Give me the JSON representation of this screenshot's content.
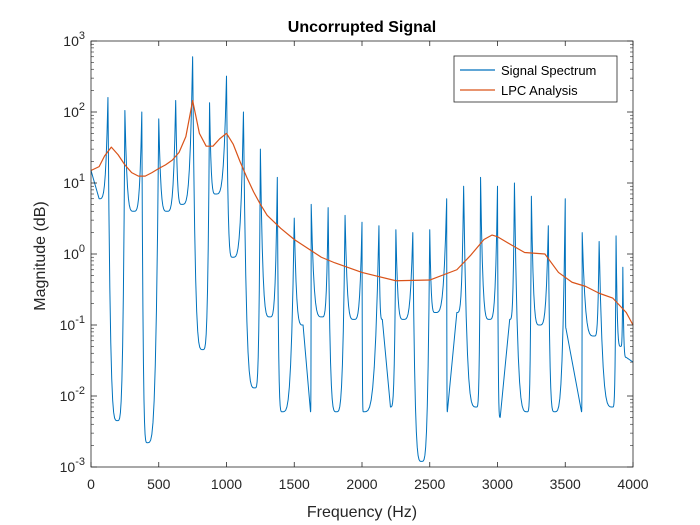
{
  "chart_data": {
    "type": "line",
    "title": "Uncorrupted Signal",
    "xlabel": "Frequency (Hz)",
    "ylabel": "Magnitude (dB)",
    "xlim": [
      0,
      4000
    ],
    "ylim": [
      0.001,
      1000
    ],
    "yscale": "log",
    "x_ticks": [
      0,
      500,
      1000,
      1500,
      2000,
      2500,
      3000,
      3500,
      4000
    ],
    "x_tick_labels": [
      "0",
      "500",
      "1000",
      "1500",
      "2000",
      "2500",
      "3000",
      "3500",
      "4000"
    ],
    "y_ticks": [
      0.001,
      0.01,
      0.1,
      1,
      10,
      100,
      1000
    ],
    "y_tick_labels": [
      {
        "base": "10",
        "exp": "-3"
      },
      {
        "base": "10",
        "exp": "-2"
      },
      {
        "base": "10",
        "exp": "-1"
      },
      {
        "base": "10",
        "exp": "0"
      },
      {
        "base": "10",
        "exp": "1"
      },
      {
        "base": "10",
        "exp": "2"
      },
      {
        "base": "10",
        "exp": "3"
      }
    ],
    "grid": false,
    "legend_position": "top-right",
    "series": [
      {
        "name": "Signal Spectrum",
        "color": "#0072BD",
        "peaks": [
          {
            "x": 125,
            "y": 160
          },
          {
            "x": 250,
            "y": 105
          },
          {
            "x": 375,
            "y": 100
          },
          {
            "x": 500,
            "y": 80
          },
          {
            "x": 625,
            "y": 145
          },
          {
            "x": 750,
            "y": 600
          },
          {
            "x": 875,
            "y": 135
          },
          {
            "x": 1000,
            "y": 320
          },
          {
            "x": 1125,
            "y": 100
          },
          {
            "x": 1250,
            "y": 30
          },
          {
            "x": 1375,
            "y": 12
          },
          {
            "x": 1500,
            "y": 3.2
          },
          {
            "x": 1625,
            "y": 5
          },
          {
            "x": 1750,
            "y": 4.5
          },
          {
            "x": 1875,
            "y": 3.5
          },
          {
            "x": 2000,
            "y": 2.8
          },
          {
            "x": 2125,
            "y": 2.5
          },
          {
            "x": 2250,
            "y": 2.2
          },
          {
            "x": 2375,
            "y": 2
          },
          {
            "x": 2500,
            "y": 2.2
          },
          {
            "x": 2625,
            "y": 6
          },
          {
            "x": 2750,
            "y": 9
          },
          {
            "x": 2875,
            "y": 12
          },
          {
            "x": 3000,
            "y": 9
          },
          {
            "x": 3125,
            "y": 10
          },
          {
            "x": 3250,
            "y": 6.5
          },
          {
            "x": 3375,
            "y": 2.5
          },
          {
            "x": 3500,
            "y": 6
          },
          {
            "x": 3625,
            "y": 2
          },
          {
            "x": 3750,
            "y": 1.5
          },
          {
            "x": 3875,
            "y": 1.8
          },
          {
            "x": 3925,
            "y": 0.65
          }
        ],
        "troughs": [
          {
            "x": 0,
            "y": 15
          },
          {
            "x": 60,
            "y": 6
          },
          {
            "x": 195,
            "y": 0.0045
          },
          {
            "x": 315,
            "y": 4
          },
          {
            "x": 415,
            "y": 0.0022
          },
          {
            "x": 560,
            "y": 4
          },
          {
            "x": 670,
            "y": 5
          },
          {
            "x": 825,
            "y": 0.045
          },
          {
            "x": 920,
            "y": 7
          },
          {
            "x": 1045,
            "y": 0.9
          },
          {
            "x": 1210,
            "y": 0.013
          },
          {
            "x": 1320,
            "y": 0.13
          },
          {
            "x": 1410,
            "y": 0.006
          },
          {
            "x": 1565,
            "y": 0.1
          },
          {
            "x": 1620,
            "y": 0.006
          },
          {
            "x": 1705,
            "y": 0.13
          },
          {
            "x": 1810,
            "y": 0.006
          },
          {
            "x": 1940,
            "y": 0.12
          },
          {
            "x": 2010,
            "y": 0.006
          },
          {
            "x": 2150,
            "y": 0.12
          },
          {
            "x": 2210,
            "y": 0.007
          },
          {
            "x": 2305,
            "y": 0.12
          },
          {
            "x": 2440,
            "y": 0.0012
          },
          {
            "x": 2540,
            "y": 0.15
          },
          {
            "x": 2630,
            "y": 0.006
          },
          {
            "x": 2700,
            "y": 0.15
          },
          {
            "x": 2845,
            "y": 0.007
          },
          {
            "x": 2940,
            "y": 0.12
          },
          {
            "x": 3020,
            "y": 0.005
          },
          {
            "x": 3090,
            "y": 0.12
          },
          {
            "x": 3220,
            "y": 0.006
          },
          {
            "x": 3310,
            "y": 0.1
          },
          {
            "x": 3420,
            "y": 0.006
          },
          {
            "x": 3505,
            "y": 0.09
          },
          {
            "x": 3620,
            "y": 0.006
          },
          {
            "x": 3715,
            "y": 0.07
          },
          {
            "x": 3850,
            "y": 0.007
          },
          {
            "x": 3910,
            "y": 0.05
          },
          {
            "x": 3950,
            "y": 0.035
          },
          {
            "x": 4000,
            "y": 0.03
          }
        ]
      },
      {
        "name": "LPC Analysis",
        "color": "#D95319",
        "x": [
          0,
          60,
          100,
          150,
          200,
          250,
          300,
          350,
          400,
          450,
          500,
          550,
          600,
          650,
          700,
          730,
          750,
          770,
          800,
          850,
          900,
          950,
          1000,
          1050,
          1100,
          1150,
          1200,
          1250,
          1300,
          1400,
          1500,
          1600,
          1700,
          1800,
          2000,
          2250,
          2500,
          2700,
          2800,
          2900,
          2960,
          3000,
          3100,
          3200,
          3350,
          3450,
          3550,
          3650,
          3750,
          3850,
          3950,
          4000
        ],
        "y": [
          15,
          17,
          24,
          32,
          25,
          18,
          14,
          12.5,
          12.5,
          14,
          16,
          18,
          21,
          27,
          45,
          90,
          145,
          95,
          50,
          33,
          33,
          42,
          50,
          35,
          20,
          12,
          7.5,
          5,
          3.5,
          2.3,
          1.6,
          1.2,
          0.9,
          0.75,
          0.55,
          0.42,
          0.43,
          0.6,
          0.95,
          1.6,
          1.85,
          1.75,
          1.35,
          1.05,
          1,
          0.55,
          0.4,
          0.35,
          0.28,
          0.24,
          0.15,
          0.1
        ]
      }
    ]
  }
}
